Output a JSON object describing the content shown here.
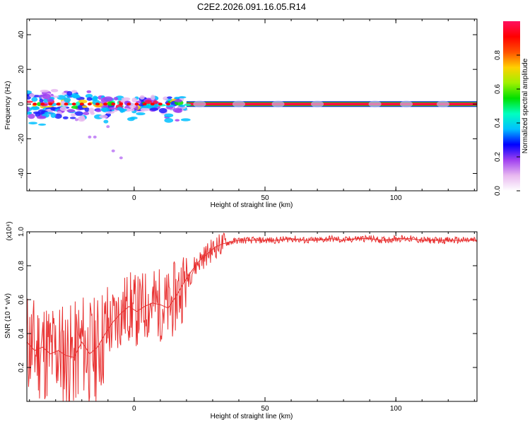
{
  "title": "C2E2.2026.091.16.05.R14",
  "chart_data": [
    {
      "type": "heatmap",
      "xlabel": "Height of straight line (km)",
      "ylabel": "Frequency (Hz)",
      "xlim": [
        -41,
        131
      ],
      "ylim": [
        -50,
        49
      ],
      "xticks": [
        "0",
        "50",
        "100"
      ],
      "xtick_values": [
        0,
        50,
        100
      ],
      "yticks": [
        "40",
        "20",
        "0",
        "-20",
        "-40"
      ],
      "ytick_values": [
        40,
        20,
        0,
        -20,
        -40
      ],
      "band_center_hz": 0,
      "colorbar": {
        "label": "Normalized spectral amplitude",
        "range": [
          0,
          1
        ],
        "ticks": [
          "0.0",
          "0.2",
          "0.4",
          "0.6",
          "0.8"
        ],
        "tick_values": [
          0,
          0.2,
          0.4,
          0.6,
          0.8
        ],
        "colors": [
          "#ffffff",
          "#e8b8f0",
          "#a040f0",
          "#0000ff",
          "#00c0ff",
          "#00ffc0",
          "#00e000",
          "#a0f000",
          "#ffd000",
          "#ff5000",
          "#ff0000",
          "#ff1060"
        ]
      }
    },
    {
      "type": "line",
      "xlabel": "Height of straight line (km)",
      "ylabel": "SNR (10 * v/v)",
      "y_multiplier": "(x10⁴)",
      "xlim": [
        -41,
        131
      ],
      "ylim": [
        0,
        1.0
      ],
      "xticks": [
        "0",
        "50",
        "100"
      ],
      "xtick_values": [
        0,
        50,
        100
      ],
      "yticks": [
        "0.2",
        "0.4",
        "0.6",
        "0.8",
        "1.0"
      ],
      "ytick_values": [
        0.2,
        0.4,
        0.6,
        0.8,
        1.0
      ],
      "color": "#e83030",
      "series": [
        {
          "x": [
            -41,
            -38,
            -35,
            -32,
            -29,
            -26,
            -23,
            -20,
            -17,
            -14,
            -11,
            -8,
            -5,
            -2,
            1,
            4,
            7,
            10,
            13,
            16,
            19,
            22,
            25,
            28,
            31,
            34,
            37,
            40,
            45,
            50,
            55,
            60,
            65,
            70,
            75,
            80,
            85,
            90,
            95,
            100,
            105,
            110,
            115,
            120,
            125,
            131
          ],
          "values": [
            0.35,
            0.3,
            0.32,
            0.28,
            0.3,
            0.27,
            0.26,
            0.35,
            0.28,
            0.32,
            0.4,
            0.47,
            0.52,
            0.56,
            0.53,
            0.56,
            0.58,
            0.57,
            0.55,
            0.62,
            0.7,
            0.77,
            0.83,
            0.87,
            0.91,
            0.93,
            0.94,
            0.95,
            0.95,
            0.95,
            0.95,
            0.96,
            0.95,
            0.95,
            0.96,
            0.95,
            0.96,
            0.96,
            0.95,
            0.96,
            0.96,
            0.95,
            0.95,
            0.95,
            0.95,
            0.95
          ]
        }
      ]
    }
  ]
}
